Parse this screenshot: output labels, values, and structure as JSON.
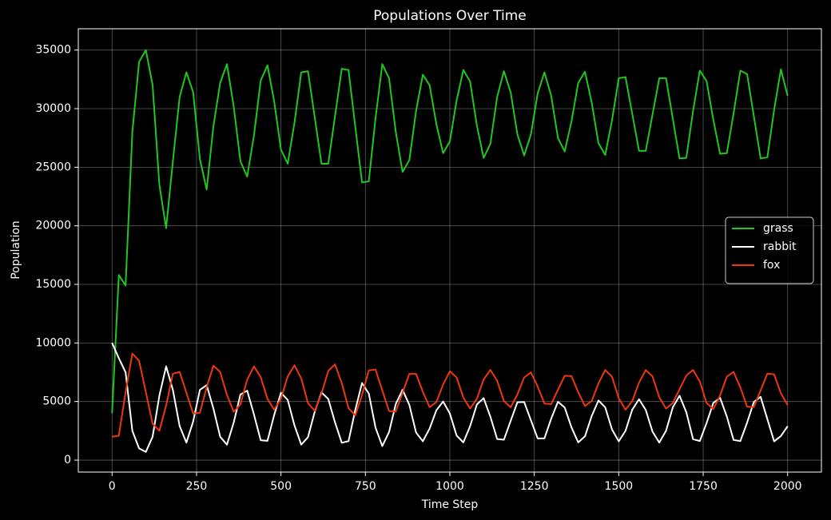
{
  "chart_data": {
    "type": "line",
    "title": "Populations Over Time",
    "x_label": "Time Step",
    "y_label": "Population",
    "x": [
      0,
      20,
      40,
      60,
      80,
      100,
      120,
      140,
      160,
      180,
      200,
      220,
      240,
      260,
      280,
      300,
      320,
      340,
      360,
      380,
      400,
      420,
      440,
      460,
      480,
      500,
      520,
      540,
      560,
      580,
      600,
      620,
      640,
      660,
      680,
      700,
      720,
      740,
      760,
      780,
      800,
      820,
      840,
      860,
      880,
      900,
      920,
      940,
      960,
      980,
      1000,
      1020,
      1040,
      1060,
      1080,
      1100,
      1120,
      1140,
      1160,
      1180,
      1200,
      1220,
      1240,
      1260,
      1280,
      1300,
      1320,
      1340,
      1360,
      1380,
      1400,
      1420,
      1440,
      1460,
      1480,
      1500,
      1520,
      1540,
      1560,
      1580,
      1600,
      1620,
      1640,
      1660,
      1680,
      1700,
      1720,
      1740,
      1760,
      1780,
      1800,
      1820,
      1840,
      1860,
      1880,
      1900,
      1920,
      1940,
      1960,
      1980,
      2000
    ],
    "series": [
      {
        "name": "grass",
        "color": "#1ec81e",
        "values": [
          4000,
          15800,
          14900,
          28000,
          34000,
          35000,
          32000,
          23500,
          19800,
          25500,
          31000,
          33100,
          31400,
          25700,
          23100,
          28500,
          32200,
          33800,
          30200,
          25500,
          24200,
          27700,
          32400,
          33700,
          30600,
          26500,
          25300,
          28800,
          33100,
          33200,
          29250,
          25300,
          25300,
          29350,
          33400,
          33300,
          28450,
          23700,
          23800,
          29200,
          33800,
          32600,
          28000,
          24600,
          25600,
          29800,
          32900,
          32000,
          28700,
          26200,
          27200,
          30700,
          33300,
          32300,
          28550,
          25800,
          27000,
          31000,
          33200,
          31400,
          27800,
          26000,
          27800,
          31300,
          33100,
          31100,
          27500,
          26350,
          28900,
          32200,
          33150,
          30500,
          27050,
          26050,
          29000,
          32600,
          32700,
          29550,
          26400,
          26400,
          29500,
          32600,
          32600,
          29150,
          25750,
          25800,
          29800,
          33250,
          32350,
          29050,
          26150,
          26200,
          29600,
          33250,
          32950,
          29350,
          25750,
          25850,
          29900,
          33350,
          31100
        ]
      },
      {
        "name": "rabbit",
        "color": "#ffffff",
        "values": [
          10000,
          8700,
          7500,
          2500,
          1000,
          700,
          2000,
          5500,
          8000,
          6000,
          2900,
          1500,
          3300,
          6000,
          6400,
          4400,
          2000,
          1320,
          3200,
          5600,
          5930,
          3900,
          1700,
          1650,
          3860,
          5750,
          5140,
          2960,
          1320,
          1960,
          4140,
          5780,
          5220,
          3220,
          1480,
          1620,
          4280,
          6580,
          5680,
          2770,
          1200,
          2400,
          4800,
          6000,
          4720,
          2350,
          1610,
          2690,
          4250,
          5000,
          3980,
          2100,
          1510,
          2900,
          4750,
          5290,
          3700,
          1800,
          1740,
          3350,
          4940,
          4960,
          3400,
          1850,
          1860,
          3540,
          4980,
          4490,
          2800,
          1510,
          2030,
          3770,
          5090,
          4500,
          2620,
          1600,
          2500,
          4300,
          5200,
          4280,
          2430,
          1500,
          2500,
          4500,
          5500,
          4090,
          1790,
          1630,
          3160,
          4880,
          5320,
          3720,
          1720,
          1630,
          3200,
          4970,
          5400,
          3500,
          1600,
          2050,
          2900
        ]
      },
      {
        "name": "fox",
        "color": "#f0360f",
        "values": [
          2000,
          2080,
          5800,
          9100,
          8480,
          5800,
          3100,
          2510,
          4670,
          7370,
          7530,
          5750,
          3980,
          4040,
          6210,
          8060,
          7520,
          5580,
          4130,
          4760,
          6870,
          8000,
          7080,
          5230,
          4300,
          5250,
          7150,
          8100,
          6970,
          4860,
          4220,
          5680,
          7620,
          8170,
          6570,
          4440,
          3820,
          5560,
          7660,
          7730,
          5950,
          4190,
          4140,
          5750,
          7360,
          7360,
          5830,
          4520,
          4950,
          6450,
          7590,
          7060,
          5330,
          4400,
          5230,
          6880,
          7700,
          6770,
          5040,
          4510,
          5610,
          7060,
          7490,
          6280,
          4830,
          4780,
          6000,
          7200,
          7180,
          5800,
          4620,
          5050,
          6550,
          7690,
          7120,
          5290,
          4300,
          5050,
          6610,
          7690,
          7140,
          5360,
          4400,
          4880,
          6050,
          7220,
          7700,
          6710,
          4880,
          4360,
          5520,
          7120,
          7530,
          6210,
          4560,
          4520,
          5950,
          7380,
          7320,
          5710,
          4700
        ]
      }
    ],
    "xlim": [
      -100,
      2100
    ],
    "ylim": [
      -1020,
      36820
    ],
    "xticks": [
      0,
      250,
      500,
      750,
      1000,
      1250,
      1500,
      1750,
      2000
    ],
    "yticks": [
      0,
      5000,
      10000,
      15000,
      20000,
      25000,
      30000,
      35000
    ],
    "grid": true,
    "legend": "center right"
  }
}
